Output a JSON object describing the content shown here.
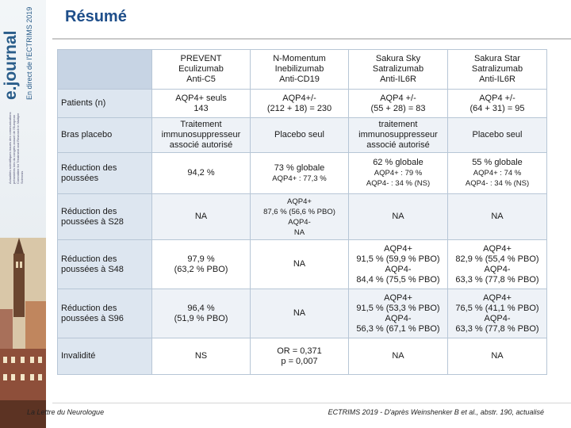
{
  "banner": {
    "brand": "e.journal",
    "brand_sub": "En direct de l'ECTRIMS 2019",
    "fine_print": "Actualités scientifiques issues des communications présentées lors du congrès annuel de l'European Committee for Treatment and Research in Multiple Sclerosis",
    "icon": "document-icon"
  },
  "title": "Résumé",
  "table": {
    "columns": [
      {
        "lines": [
          "PREVENT",
          "Eculizumab",
          "Anti-C5"
        ]
      },
      {
        "lines": [
          "N-Momentum",
          "Inebilizumab",
          "Anti-CD19"
        ]
      },
      {
        "lines": [
          "Sakura Sky",
          "Satralizumab",
          "Anti-IL6R"
        ]
      },
      {
        "lines": [
          "Sakura Star",
          "Satralizumab",
          "Anti-IL6R"
        ]
      }
    ],
    "rows": [
      {
        "label": "Patients (n)",
        "cells": [
          {
            "lines": [
              "AQP4+ seuls",
              "143"
            ]
          },
          {
            "lines": [
              "AQP4+/-",
              "(212 + 18) = 230"
            ]
          },
          {
            "lines": [
              "AQP4 +/-",
              "(55 + 28) = 83"
            ]
          },
          {
            "lines": [
              "AQP4 +/-",
              "(64 + 31) = 95"
            ]
          }
        ]
      },
      {
        "label": "Bras placebo",
        "cells": [
          {
            "lines": [
              "Traitement",
              "immunosuppresseur",
              "associé autorisé"
            ]
          },
          {
            "lines": [
              "Placebo seul"
            ]
          },
          {
            "lines": [
              "traitement",
              "immunosuppresseur",
              "associé autorisé"
            ]
          },
          {
            "lines": [
              "Placebo seul"
            ]
          }
        ]
      },
      {
        "label": "Réduction des poussées",
        "cells": [
          {
            "lines": [
              "94,2 %"
            ]
          },
          {
            "lines": [
              "73 % globale"
            ],
            "small": [
              "AQP4+ : 77,3 %"
            ]
          },
          {
            "lines": [
              "62 % globale"
            ],
            "small": [
              "AQP4+ : 79 %",
              "AQP4- : 34 % (NS)"
            ]
          },
          {
            "lines": [
              "55 % globale"
            ],
            "small": [
              "AQP4+ : 74 %",
              "AQP4- : 34 % (NS)"
            ]
          }
        ]
      },
      {
        "label": "Réduction des poussées à S28",
        "cells": [
          {
            "lines": [
              "NA"
            ]
          },
          {
            "small": [
              "AQP4+",
              "87,6 % (56,6 % PBO)",
              "AQP4-",
              "NA"
            ]
          },
          {
            "lines": [
              "NA"
            ]
          },
          {
            "lines": [
              "NA"
            ]
          }
        ]
      },
      {
        "label": "Réduction des poussées à S48",
        "cells": [
          {
            "lines": [
              "97,9 %",
              "(63,2 % PBO)"
            ]
          },
          {
            "lines": [
              "NA"
            ]
          },
          {
            "lines": [
              "AQP4+",
              "91,5 % (59,9 % PBO)",
              "AQP4-",
              "84,4 % (75,5 % PBO)"
            ]
          },
          {
            "lines": [
              "AQP4+",
              "82,9 % (55,4 % PBO)",
              "AQP4-",
              "63,3 % (77,8 % PBO)"
            ]
          }
        ]
      },
      {
        "label": "Réduction des poussées à S96",
        "cells": [
          {
            "lines": [
              "96,4 %",
              "(51,9 % PBO)"
            ]
          },
          {
            "lines": [
              "NA"
            ]
          },
          {
            "lines": [
              "AQP4+",
              "91,5 % (53,3 % PBO)",
              "AQP4-",
              "56,3 % (67,1 % PBO)"
            ]
          },
          {
            "lines": [
              "AQP4+",
              "76,5 % (41,1 % PBO)",
              "AQP4-",
              "63,3 % (77,8 % PBO)"
            ]
          }
        ]
      },
      {
        "label": "Invalidité",
        "cells": [
          {
            "lines": [
              "NS"
            ]
          },
          {
            "lines": [
              "OR = 0,371",
              "p = 0,007"
            ]
          },
          {
            "lines": [
              "NA"
            ]
          },
          {
            "lines": [
              "NA"
            ]
          }
        ]
      }
    ]
  },
  "footer": {
    "left": "La Lettre du Neurologue",
    "right": "ECTRIMS 2019 - D'après Weinshenker B et al., abstr. 190, actualisé"
  },
  "colors": {
    "title": "#1e4e8a",
    "header_corner": "#c7d4e4",
    "row_head": "#dde6f0",
    "row_alt": "#eef2f7",
    "border": "#b7c6d6"
  }
}
